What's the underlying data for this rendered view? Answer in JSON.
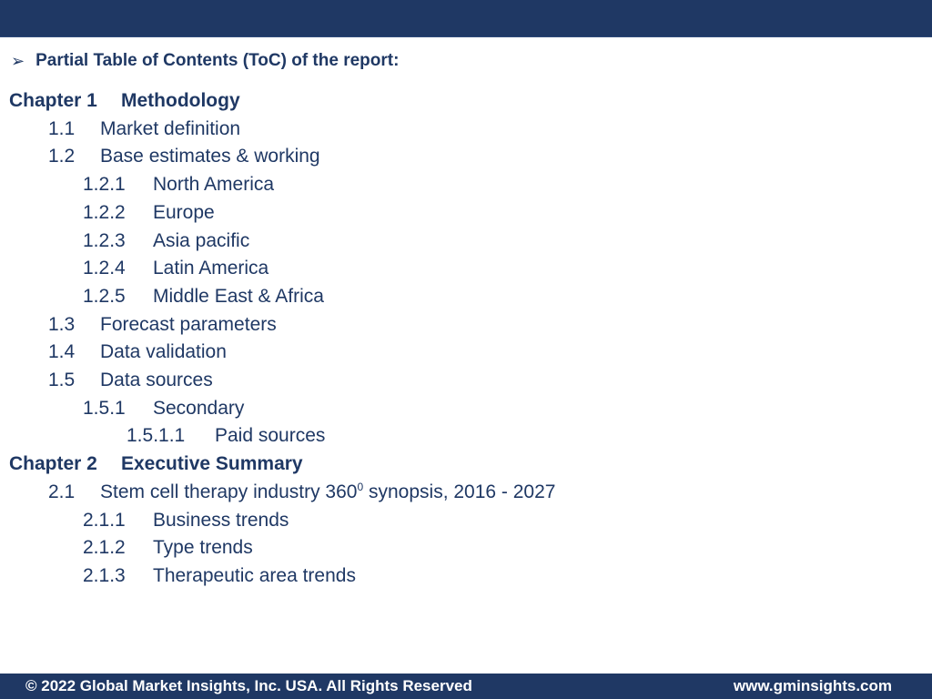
{
  "heading": {
    "bullet_icon": "arrow-bullet-icon",
    "text": "Partial Table of Contents (ToC) of the report:"
  },
  "toc": [
    {
      "level": 1,
      "num": "Chapter 1",
      "label": "Methodology"
    },
    {
      "level": 2,
      "num": "1.1",
      "label": "Market definition"
    },
    {
      "level": 2,
      "num": "1.2",
      "label": "Base estimates & working"
    },
    {
      "level": 3,
      "num": "1.2.1",
      "label": "North America"
    },
    {
      "level": 3,
      "num": "1.2.2",
      "label": "Europe"
    },
    {
      "level": 3,
      "num": "1.2.3",
      "label": "Asia pacific"
    },
    {
      "level": 3,
      "num": "1.2.4",
      "label": "Latin America"
    },
    {
      "level": 3,
      "num": "1.2.5",
      "label": "Middle East & Africa"
    },
    {
      "level": 2,
      "num": "1.3",
      "label": "Forecast parameters"
    },
    {
      "level": 2,
      "num": "1.4",
      "label": "Data validation"
    },
    {
      "level": 2,
      "num": "1.5",
      "label": "Data sources"
    },
    {
      "level": 3,
      "num": "1.5.1",
      "label": "Secondary"
    },
    {
      "level": 4,
      "num": "1.5.1.1",
      "label": "Paid sources"
    },
    {
      "level": 1,
      "num": "Chapter 2",
      "label": "Executive Summary"
    },
    {
      "level": 2,
      "num": "2.1",
      "label": "Stem cell therapy industry 360",
      "sup": "0",
      "label_after": " synopsis, 2016 - 2027"
    },
    {
      "level": 3,
      "num": "2.1.1",
      "label": "Business trends"
    },
    {
      "level": 3,
      "num": "2.1.2",
      "label": "Type trends"
    },
    {
      "level": 3,
      "num": "2.1.3",
      "label": "Therapeutic area trends"
    }
  ],
  "footer": {
    "copyright": "© 2022 Global Market Insights, Inc. USA. All Rights Reserved",
    "website": "www.gminsights.com"
  },
  "colors": {
    "bar": "#1f3864",
    "text": "#1f3864"
  }
}
